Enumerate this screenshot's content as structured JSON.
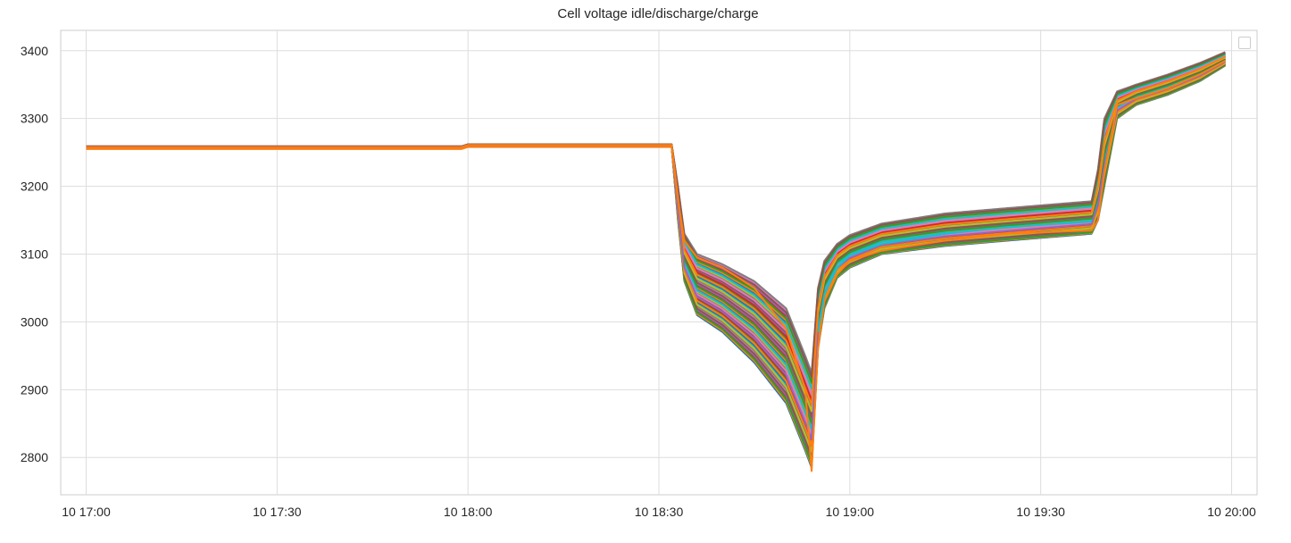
{
  "chart_data": {
    "type": "line",
    "title": "Cell voltage idle/discharge/charge",
    "xlabel": "",
    "ylabel": "",
    "x_tick_labels": [
      "10 17:00",
      "10 17:30",
      "10 18:00",
      "10 18:30",
      "10 19:00",
      "10 19:30",
      "10 20:00"
    ],
    "y_tick_labels": [
      "2800",
      "2900",
      "3000",
      "3100",
      "3200",
      "3300",
      "3400"
    ],
    "x_range": [
      "10 16:56",
      "10 20:04"
    ],
    "ylim": [
      2745,
      3430
    ],
    "grid": true,
    "legend": {
      "placement": "top-right",
      "entries": []
    },
    "series_count": 48,
    "colors": [
      "#1f77b4",
      "#ff7f0e",
      "#2ca02c",
      "#d62728",
      "#9467bd",
      "#8c564b",
      "#e377c2",
      "#7f7f7f",
      "#bcbd22",
      "#17becf"
    ],
    "envelope": {
      "x": [
        "10 17:00",
        "10 17:59",
        "10 18:00",
        "10 18:28",
        "10 18:32",
        "10 18:33",
        "10 18:34",
        "10 18:36",
        "10 18:40",
        "10 18:45",
        "10 18:50",
        "10 18:53",
        "10 18:54",
        "10 18:55",
        "10 18:56",
        "10 18:58",
        "10 19:00",
        "10 19:05",
        "10 19:15",
        "10 19:25",
        "10 19:38",
        "10 19:39",
        "10 19:40",
        "10 19:42",
        "10 19:45",
        "10 19:50",
        "10 19:55",
        "10 19:59"
      ],
      "upper": [
        3259,
        3259,
        3262,
        3262,
        3262,
        3200,
        3130,
        3100,
        3085,
        3060,
        3020,
        2950,
        2925,
        3050,
        3090,
        3115,
        3128,
        3145,
        3160,
        3168,
        3178,
        3225,
        3300,
        3340,
        3350,
        3365,
        3382,
        3398
      ],
      "lower": [
        3256,
        3256,
        3259,
        3259,
        3259,
        3150,
        3060,
        3010,
        2985,
        2940,
        2880,
        2810,
        2785,
        2960,
        3020,
        3065,
        3080,
        3100,
        3112,
        3120,
        3130,
        3150,
        3200,
        3300,
        3320,
        3335,
        3355,
        3378
      ]
    },
    "outliers": [
      {
        "name": "",
        "color": "#ff7f0e",
        "x": [
          "10 17:00",
          "10 17:59",
          "10 18:00",
          "10 18:28",
          "10 18:32",
          "10 18:33",
          "10 18:34",
          "10 18:36",
          "10 18:40",
          "10 18:45",
          "10 18:50",
          "10 18:53",
          "10 18:54",
          "10 18:55",
          "10 18:56",
          "10 18:58",
          "10 19:00",
          "10 19:05",
          "10 19:15",
          "10 19:25",
          "10 19:38",
          "10 19:39",
          "10 19:40",
          "10 19:42",
          "10 19:45",
          "10 19:50",
          "10 19:55",
          "10 19:59"
        ],
        "y": [
          3255,
          3255,
          3258,
          3258,
          3258,
          3180,
          3120,
          3095,
          3080,
          3050,
          2990,
          2900,
          2780,
          2960,
          3030,
          3070,
          3090,
          3105,
          3120,
          3130,
          3135,
          3150,
          3220,
          3320,
          3330,
          3345,
          3365,
          3385
        ]
      },
      {
        "name": "",
        "color": "#17becf",
        "x": [
          "10 18:55",
          "10 18:56",
          "10 18:58",
          "10 19:00",
          "10 19:05",
          "10 19:15",
          "10 19:25",
          "10 19:38"
        ],
        "y": [
          2985,
          3040,
          3080,
          3098,
          3115,
          3130,
          3140,
          3148
        ]
      }
    ],
    "annotations": []
  }
}
